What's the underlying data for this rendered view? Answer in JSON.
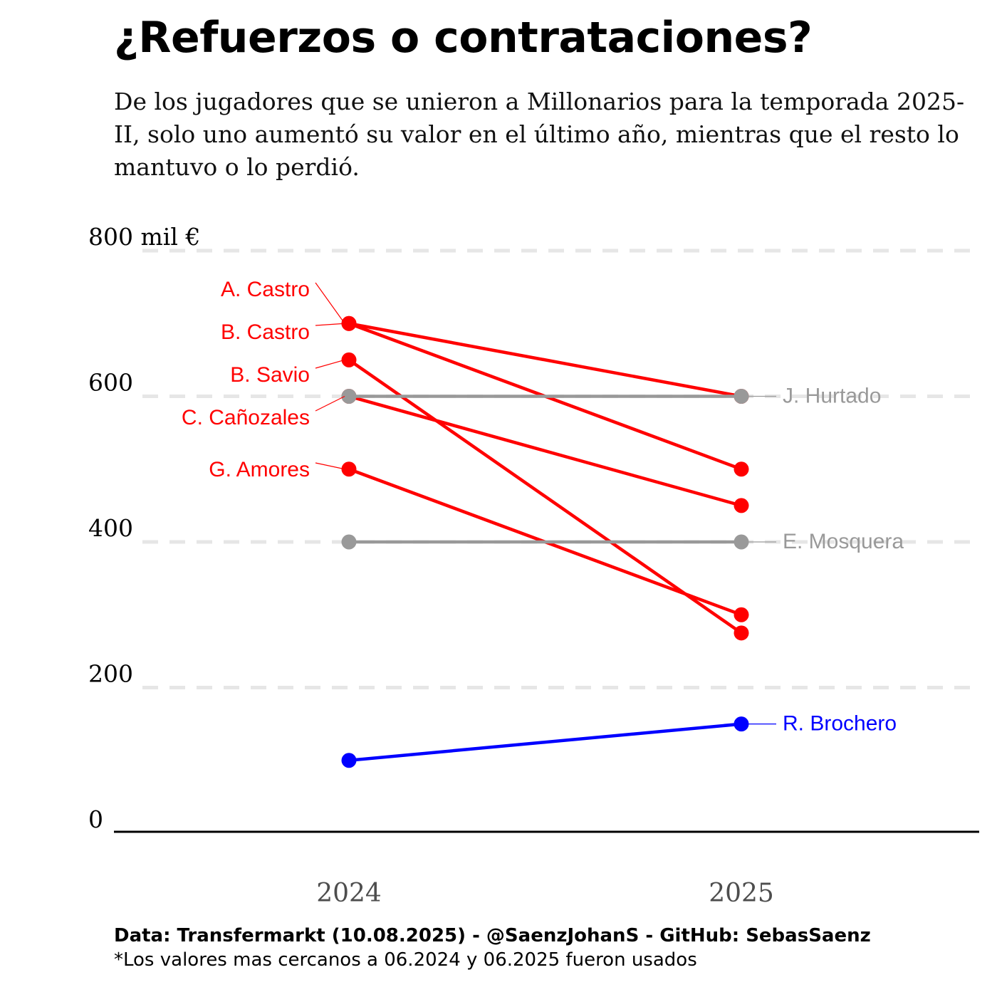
{
  "title": "¿Refuerzos o contrataciones?",
  "subtitle": "De los jugadores que se unieron a Millonarios para la temporada 2025-II, solo uno aumentó su valor en el último año, mientras que el resto lo mantuvo o lo perdió.",
  "caption": "Data: Transfermarkt (10.08.2025) - @SaenzJohanS - GitHub: SebasSaenz",
  "note": "*Los valores mas cercanos a 06.2024 y 06.2025 fueron usados",
  "chart_data": {
    "type": "line",
    "x": [
      "2024",
      "2025"
    ],
    "ylim": [
      0,
      800
    ],
    "yticks": [
      0,
      200,
      400,
      600,
      800
    ],
    "ytick_labels": [
      "0",
      "200",
      "400",
      "600",
      "800 mil €"
    ],
    "grid": "dashed horizontal",
    "colors": {
      "down": "#ff0000",
      "same": "#999999",
      "up": "#0000ff"
    },
    "series": [
      {
        "name": "A. Castro",
        "values": [
          700,
          600
        ],
        "trend": "down",
        "label_side": "left"
      },
      {
        "name": "B. Castro",
        "values": [
          700,
          500
        ],
        "trend": "down",
        "label_side": "left"
      },
      {
        "name": "B. Savio",
        "values": [
          650,
          275
        ],
        "trend": "down",
        "label_side": "left"
      },
      {
        "name": "C. Cañozales",
        "values": [
          600,
          450
        ],
        "trend": "down",
        "label_side": "left"
      },
      {
        "name": "G. Amores",
        "values": [
          500,
          300
        ],
        "trend": "down",
        "label_side": "left"
      },
      {
        "name": "J. Hurtado",
        "values": [
          600,
          600
        ],
        "trend": "same",
        "label_side": "right"
      },
      {
        "name": "E. Mosquera",
        "values": [
          400,
          400
        ],
        "trend": "same",
        "label_side": "right"
      },
      {
        "name": "R. Brochero",
        "values": [
          100,
          150
        ],
        "trend": "up",
        "label_side": "right"
      }
    ]
  }
}
